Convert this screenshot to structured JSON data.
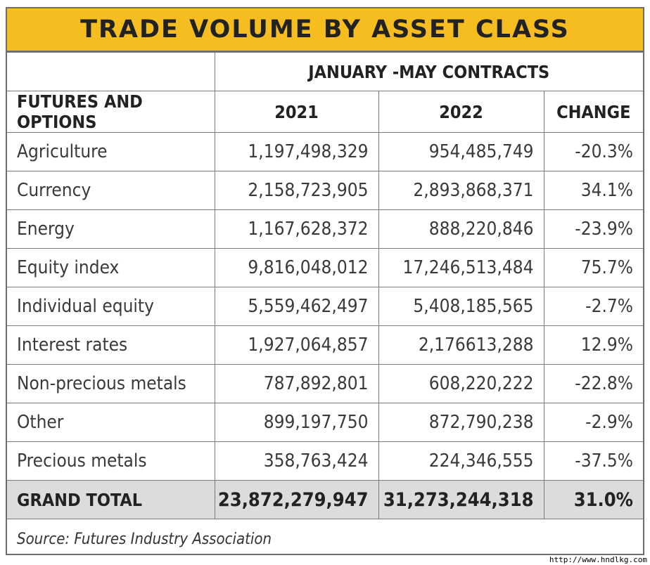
{
  "title": "TRADE VOLUME BY ASSET CLASS",
  "group_header": "JANUARY -MAY CONTRACTS",
  "columns": [
    "FUTURES AND OPTIONS",
    "2021",
    "2022",
    "CHANGE"
  ],
  "rows": [
    {
      "category": "Agriculture",
      "y2021": "1,197,498,329",
      "y2022": "954,485,749",
      "change": "-20.3%"
    },
    {
      "category": "Currency",
      "y2021": "2,158,723,905",
      "y2022": "2,893,868,371",
      "change": "34.1%"
    },
    {
      "category": "Energy",
      "y2021": "1,167,628,372",
      "y2022": "888,220,846",
      "change": "-23.9%"
    },
    {
      "category": "Equity index",
      "y2021": "9,816,048,012",
      "y2022": "17,246,513,484",
      "change": "75.7%"
    },
    {
      "category": "Individual equity",
      "y2021": "5,559,462,497",
      "y2022": "5,408,185,565",
      "change": "-2.7%"
    },
    {
      "category": "Interest rates",
      "y2021": "1,927,064,857",
      "y2022": "2,176613,288",
      "change": "12.9%"
    },
    {
      "category": "Non-precious metals",
      "y2021": "787,892,801",
      "y2022": "608,220,222",
      "change": "-22.8%"
    },
    {
      "category": "Other",
      "y2021": "899,197,750",
      "y2022": "872,790,238",
      "change": "-2.9%"
    },
    {
      "category": "Precious metals",
      "y2021": "358,763,424",
      "y2022": "224,346,555",
      "change": "-37.5%"
    }
  ],
  "total": {
    "category": "GRAND TOTAL",
    "y2021": "23,872,279,947",
    "y2022": "31,273,244,318",
    "change": "31.0%"
  },
  "source": "Source: Futures Industry Association",
  "watermark": "http://www.hndlkg.com",
  "colors": {
    "title_bg": "#f5bd1f",
    "total_bg": "#dcdcdc",
    "border": "#7a7a7a"
  }
}
